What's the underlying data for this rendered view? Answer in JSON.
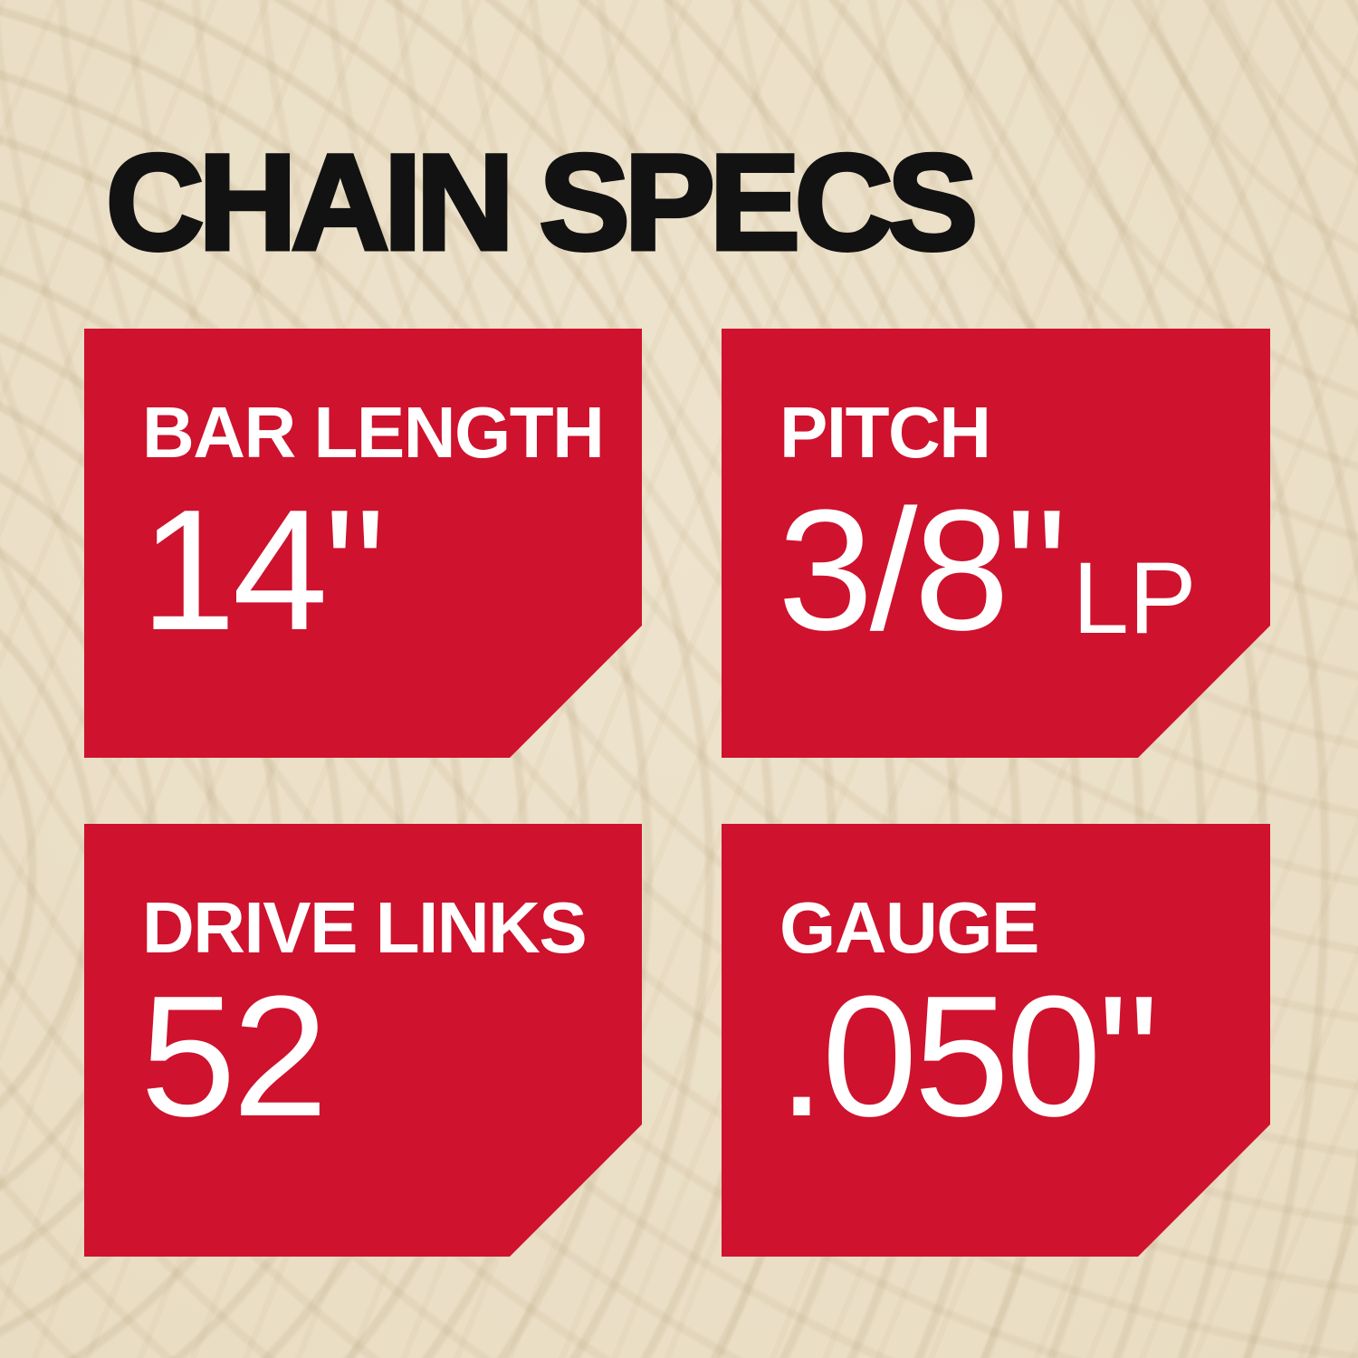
{
  "title": "CHAIN SPECS",
  "colors": {
    "card_red": "#cf122d",
    "background_wood": "#e9ddc4",
    "title_black": "#121212",
    "card_text_white": "#ffffff"
  },
  "specs": [
    {
      "label": "BAR LENGTH",
      "value": "14\""
    },
    {
      "label": "PITCH",
      "value": "3/8\"",
      "suffix": "LP"
    },
    {
      "label": "DRIVE LINKS",
      "value": "52"
    },
    {
      "label": "GAUGE",
      "value": ".050\""
    }
  ]
}
